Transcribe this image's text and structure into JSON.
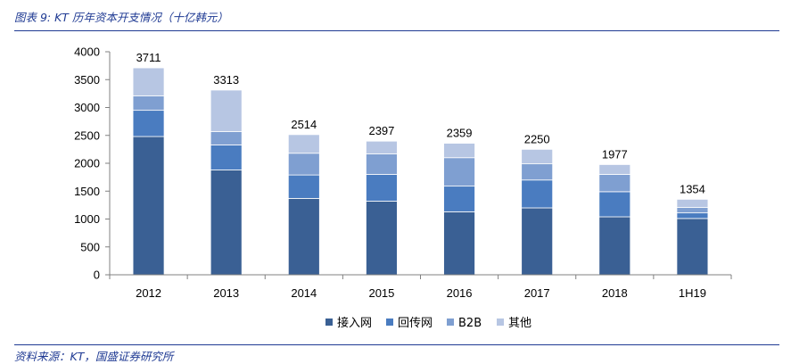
{
  "figure": {
    "title": "图表 9: KT 历年资本开支情况（十亿韩元）",
    "source": "资料来源：KT，国盛证券研究所"
  },
  "chart_data": {
    "type": "bar",
    "stacked": true,
    "categories": [
      "2012",
      "2013",
      "2014",
      "2015",
      "2016",
      "2017",
      "2018",
      "1H19"
    ],
    "series": [
      {
        "name": "接入网",
        "color": "#3a6094",
        "values": [
          2480,
          1880,
          1370,
          1320,
          1130,
          1200,
          1040,
          1010
        ]
      },
      {
        "name": "回传网",
        "color": "#4a7cc0",
        "values": [
          470,
          450,
          420,
          480,
          460,
          500,
          450,
          100
        ]
      },
      {
        "name": "B2B",
        "color": "#7f9fd1",
        "values": [
          260,
          240,
          390,
          370,
          510,
          290,
          310,
          100
        ]
      },
      {
        "name": "其他",
        "color": "#b7c6e3",
        "values": [
          501,
          743,
          334,
          227,
          259,
          260,
          177,
          144
        ]
      }
    ],
    "totals": [
      3711,
      3313,
      2514,
      2397,
      2359,
      2250,
      1977,
      1354
    ],
    "ylim": [
      0,
      4000
    ],
    "yticks": [
      0,
      500,
      1000,
      1500,
      2000,
      2500,
      3000,
      3500,
      4000
    ],
    "xlabel": "",
    "ylabel": "",
    "grid": false,
    "legend": "bottom"
  }
}
